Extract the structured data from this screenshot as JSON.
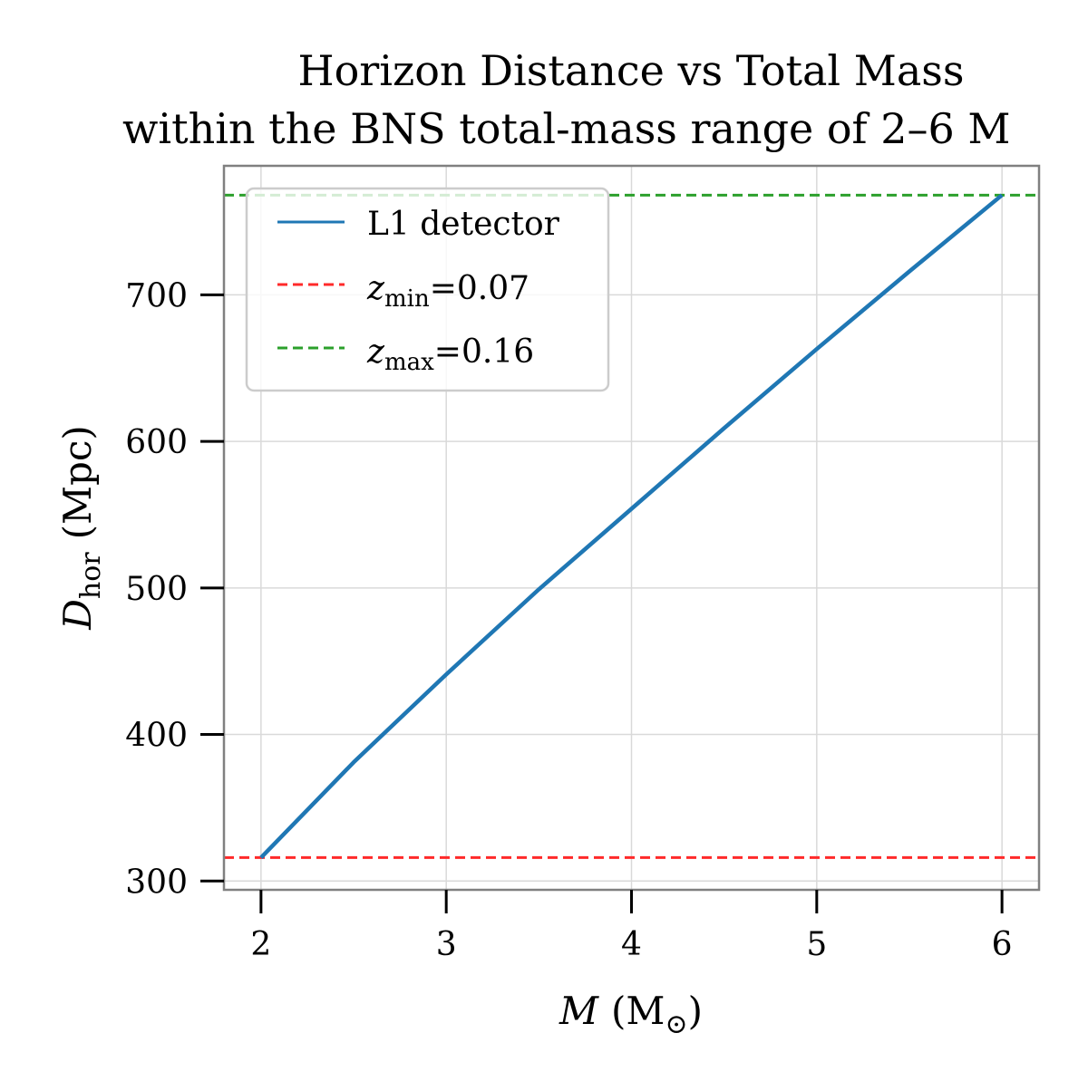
{
  "chart_data": {
    "type": "line",
    "title_line1": "Horizon Distance vs Total Mass",
    "title_line2": "within the BNS total-mass range of 2–6 M",
    "xlabel_main": "M",
    "xlabel_unit_prefix": "(M",
    "xlabel_unit_sub": "⊙",
    "xlabel_unit_suffix": ")",
    "ylabel_main": "D",
    "ylabel_sub": "hor",
    "ylabel_unit": "(Mpc)",
    "xlim": [
      1.8,
      6.2
    ],
    "ylim": [
      294,
      788
    ],
    "x_ticks": [
      2,
      3,
      4,
      5,
      6
    ],
    "x_tick_labels": [
      "2",
      "3",
      "4",
      "5",
      "6"
    ],
    "y_ticks": [
      300,
      400,
      500,
      600,
      700
    ],
    "y_tick_labels": [
      "300",
      "400",
      "500",
      "600",
      "700"
    ],
    "grid": true,
    "legend_position": "upper-left",
    "series": [
      {
        "name": "L1 detector",
        "color": "#1f77b4",
        "style": "solid",
        "x": [
          2.0,
          2.5,
          3.0,
          3.5,
          4.0,
          4.5,
          5.0,
          5.5,
          6.0
        ],
        "y": [
          316,
          381,
          441,
          499,
          554,
          609,
          663,
          716,
          768
        ]
      }
    ],
    "hlines": [
      {
        "name_main": "z",
        "name_sub": "min",
        "name_suffix": "=0.07",
        "y": 316,
        "color": "#ff2a2a",
        "style": "dashed"
      },
      {
        "name_main": "z",
        "name_sub": "max",
        "name_suffix": "=0.16",
        "y": 768,
        "color": "#2ca02c",
        "style": "dashed"
      }
    ]
  }
}
